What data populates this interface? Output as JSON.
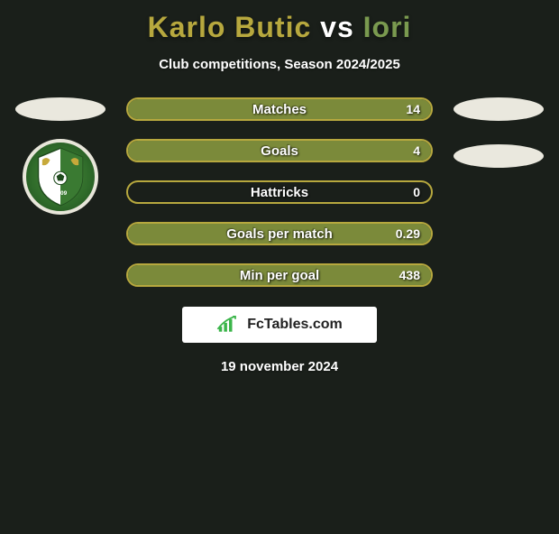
{
  "title": {
    "player1": "Karlo Butic",
    "vs": "vs",
    "player2": "Iori",
    "player1_color": "#b7a83e",
    "player2_color": "#7a9a4f"
  },
  "subtitle": "Club competitions, Season 2024/2025",
  "colors": {
    "background": "#1a1f1a",
    "ellipse": "#eae8de",
    "bar_border": "#b7a83e",
    "bar_fill": "#7b8a3a"
  },
  "left_side": {
    "has_badge": true,
    "badge_text_top": "FERALPISALO",
    "badge_year": "2009"
  },
  "right_side": {
    "has_badge": false
  },
  "stats": [
    {
      "label": "Matches",
      "value": "14",
      "fill_pct": 100
    },
    {
      "label": "Goals",
      "value": "4",
      "fill_pct": 100
    },
    {
      "label": "Hattricks",
      "value": "0",
      "fill_pct": 0
    },
    {
      "label": "Goals per match",
      "value": "0.29",
      "fill_pct": 100
    },
    {
      "label": "Min per goal",
      "value": "438",
      "fill_pct": 100
    }
  ],
  "footer": {
    "brand": "FcTables.com",
    "date": "19 november 2024"
  }
}
